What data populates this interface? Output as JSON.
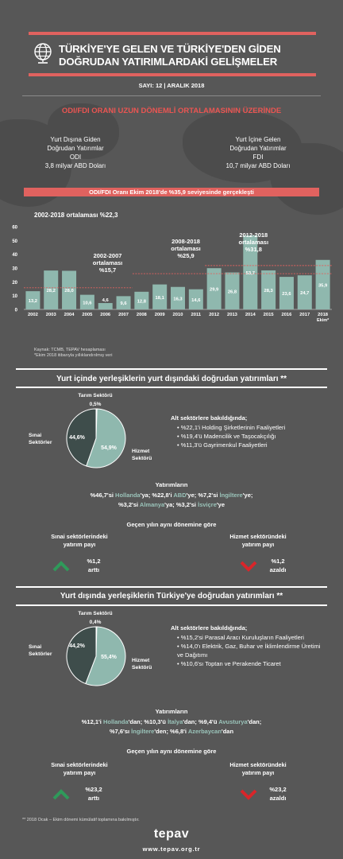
{
  "header": {
    "title_line1": "TÜRKİYE'YE GELEN VE TÜRKİYE'DEN GİDEN",
    "title_line2": "DOĞRUDAN YATIRIMLARDAKİ GELİŞMELER",
    "issue": "SAYI: 12 | ARALIK 2018"
  },
  "summary": {
    "headline": "ODI/FDI ORANI UZUN DÖNEMLİ ORTALAMASININ ÜZERİNDE",
    "odi_lines": [
      "Yurt Dışına Giden",
      "Doğrudan Yatırımlar",
      "ODI",
      "3,8 milyar ABD Doları"
    ],
    "fdi_lines": [
      "Yurt İçine Gelen",
      "Doğrudan Yatırımlar",
      "FDI",
      "10,7 milyar ABD Doları"
    ],
    "ratio_line": "ODI/FDI Oranı Ekim 2018'de %35,9 seviyesinde gerçekleşti"
  },
  "chart_data": {
    "type": "bar",
    "title": "2002-2018 ortalaması %22,3",
    "categories": [
      "2002",
      "2003",
      "2004",
      "2005",
      "2006",
      "2007",
      "2008",
      "2009",
      "2010",
      "2011",
      "2012",
      "2013",
      "2014",
      "2015",
      "2016",
      "2017",
      "2018"
    ],
    "category_sub": {
      "2018": "Ekim*"
    },
    "values": [
      13.2,
      28.2,
      28.0,
      10.6,
      4.6,
      9.6,
      12.8,
      18.1,
      16.3,
      14.6,
      29.9,
      26.8,
      53.7,
      28.3,
      23.6,
      24.7,
      35.9
    ],
    "value_labels": [
      "13,2",
      "28,2",
      "28,0",
      "10,6",
      "4,6",
      "9,6",
      "12,8",
      "18,1",
      "16,3",
      "14,6",
      "29,9",
      "26,8",
      "53,7",
      "28,3",
      "23,6",
      "24,7",
      "35,9"
    ],
    "ylim": [
      0,
      60
    ],
    "yticks": [
      "0",
      "10",
      "20",
      "30",
      "40",
      "50",
      "60"
    ],
    "period_averages": [
      {
        "label_lines": [
          "2002-2007",
          "ortalaması",
          "%15,7"
        ],
        "from": "2002",
        "to": "2007",
        "value": 15.7
      },
      {
        "label_lines": [
          "2008-2018",
          "ortalaması",
          "%25,9"
        ],
        "from": "2008",
        "to": "2018",
        "value": 25.9
      },
      {
        "label_lines": [
          "2012-2018",
          "ortalaması",
          "%31,8"
        ],
        "from": "2012",
        "to": "2018",
        "value": 31.8
      }
    ],
    "bar_color": "#8fb8ae",
    "line_color": "#e0625f",
    "sources": [
      "Kaynak: TCMB, TEPAV hesaplaması",
      "*Ekim 2018 itibarıyla yıllıklandırılmış veri"
    ]
  },
  "odi_section": {
    "title": "Yurt içinde yerleşiklerin yurt dışındaki doğrudan yatırımları **",
    "pie": [
      {
        "name": "Tarım Sektörü",
        "value": 0.5,
        "label": "0,5%",
        "color": "#d8d8d8"
      },
      {
        "name": "Hizmet Sektörü",
        "value": 54.9,
        "label": "54,9%",
        "color": "#8fb8ae"
      },
      {
        "name": "Sınai Sektörler",
        "value": 44.6,
        "label": "44,6%",
        "color": "#3e4d4b"
      }
    ],
    "pie_names": {
      "agri": "Tarım Sektörü",
      "service_1": "Hizmet",
      "service_2": "Sektörü",
      "industry_1": "Sınai",
      "industry_2": "Sektörler"
    },
    "sub_title": "Alt sektörlere bakıldığında;",
    "bullets": [
      "%22,1'i Holding Şirketlerinin Faaliyetleri",
      "%19,4'ü Madencilik ve Taşocakçılığı",
      "%11,3'ü Gayrimenkul Faaliyetleri"
    ],
    "investments_title": "Yatırımların",
    "inv_line1": [
      {
        "t": "%46,7'si ",
        "h": false
      },
      {
        "t": "Hollanda",
        "h": true
      },
      {
        "t": "'ya; %22,8'i ",
        "h": false
      },
      {
        "t": "ABD",
        "h": true
      },
      {
        "t": "'ye; %7,2'si ",
        "h": false
      },
      {
        "t": "İngiltere",
        "h": true
      },
      {
        "t": "'ye;",
        "h": false
      }
    ],
    "inv_line2": [
      {
        "t": "%3,2'si ",
        "h": false
      },
      {
        "t": "Almanya",
        "h": true
      },
      {
        "t": "'ya; %3,2'si ",
        "h": false
      },
      {
        "t": "İsviçre",
        "h": true
      },
      {
        "t": "'ye",
        "h": false
      }
    ],
    "yoy_title": "Geçen yılın aynı dönemine göre",
    "left_label_1": "Sınai sektörlerindeki",
    "left_label_2": "yatırım payı",
    "left_value": "%1,2",
    "left_change": "arttı",
    "right_label_1": "Hizmet sektöründeki",
    "right_label_2": "yatırım payı",
    "right_value": "%1,2",
    "right_change": "azaldı",
    "up_color": "#2f9a5a",
    "down_color": "#d9252a"
  },
  "fdi_section": {
    "title": "Yurt dışında yerleşiklerin Türkiye'ye doğrudan yatırımları **",
    "pie": [
      {
        "name": "Tarım Sektörü",
        "value": 0.4,
        "label": "0,4%",
        "color": "#d8d8d8"
      },
      {
        "name": "Hizmet Sektörü",
        "value": 55.4,
        "label": "55,4%",
        "color": "#8fb8ae"
      },
      {
        "name": "Sınai Sektörler",
        "value": 44.2,
        "label": "44,2%",
        "color": "#3e4d4b"
      }
    ],
    "pie_names": {
      "agri": "Tarım Sektörü",
      "service_1": "Hizmet",
      "service_2": "Sektörü",
      "industry_1": "Sınai",
      "industry_2": "Sektörler"
    },
    "sub_title": "Alt sektörlere bakıldığında;",
    "bullets": [
      "%15,2'si Parasal Aracı Kuruluşların Faaliyetleri",
      "%14,0'ı Elektrik, Gaz, Buhar ve İklimlendirme Üretimi ve Dağıtımı",
      "%10,6'sı Toptan ve Perakende Ticaret"
    ],
    "investments_title": "Yatırımların",
    "inv_line1": [
      {
        "t": "%12,1'i ",
        "h": false
      },
      {
        "t": "Hollanda",
        "h": true
      },
      {
        "t": "'dan; %10,3'ü ",
        "h": false
      },
      {
        "t": "İtalya",
        "h": true
      },
      {
        "t": "'dan; %9,4'ü ",
        "h": false
      },
      {
        "t": "Avusturya",
        "h": true
      },
      {
        "t": "'dan;",
        "h": false
      }
    ],
    "inv_line2": [
      {
        "t": "%7,6'sı ",
        "h": false
      },
      {
        "t": "İngiltere",
        "h": true
      },
      {
        "t": "'den; %6,8'i ",
        "h": false
      },
      {
        "t": "Azerbaycan",
        "h": true
      },
      {
        "t": "'dan",
        "h": false
      }
    ],
    "yoy_title": "Geçen yılın aynı dönemine göre",
    "left_label_1": "Sınai sektörlerindeki",
    "left_label_2": "yatırım payı",
    "left_value": "%23,2",
    "left_change": "arttı",
    "right_label_1": "Hizmet sektöründeki",
    "right_label_2": "yatırım payı",
    "right_value": "%23,2",
    "right_change": "azaldı",
    "up_color": "#2f9a5a",
    "down_color": "#d9252a"
  },
  "footer": {
    "note": "** 2018 Ocak – Ekim dönemi kümülatif toplamına bakılmıştır.",
    "logo": "tepav",
    "url": "www.tepav.org.tr"
  }
}
